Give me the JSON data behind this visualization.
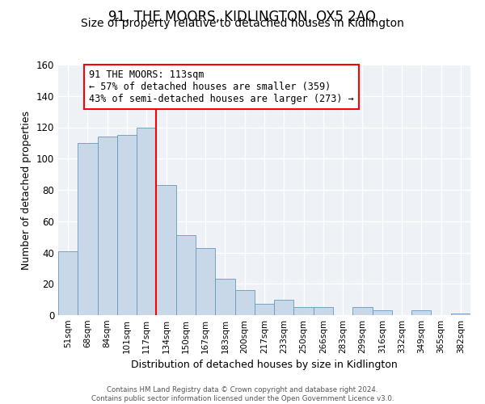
{
  "title": "91, THE MOORS, KIDLINGTON, OX5 2AQ",
  "subtitle": "Size of property relative to detached houses in Kidlington",
  "xlabel": "Distribution of detached houses by size in Kidlington",
  "ylabel": "Number of detached properties",
  "categories": [
    "51sqm",
    "68sqm",
    "84sqm",
    "101sqm",
    "117sqm",
    "134sqm",
    "150sqm",
    "167sqm",
    "183sqm",
    "200sqm",
    "217sqm",
    "233sqm",
    "250sqm",
    "266sqm",
    "283sqm",
    "299sqm",
    "316sqm",
    "332sqm",
    "349sqm",
    "365sqm",
    "382sqm"
  ],
  "values": [
    41,
    110,
    114,
    115,
    120,
    83,
    51,
    43,
    23,
    16,
    7,
    10,
    5,
    5,
    0,
    5,
    3,
    0,
    3,
    0,
    1
  ],
  "bar_color": "#c8d8e8",
  "bar_edge_color": "#6699bb",
  "vline_color": "red",
  "annotation_text": "91 THE MOORS: 113sqm\n← 57% of detached houses are smaller (359)\n43% of semi-detached houses are larger (273) →",
  "annotation_box_color": "white",
  "annotation_box_edge_color": "red",
  "ylim": [
    0,
    160
  ],
  "yticks": [
    0,
    20,
    40,
    60,
    80,
    100,
    120,
    140,
    160
  ],
  "footer": "Contains HM Land Registry data © Crown copyright and database right 2024.\nContains public sector information licensed under the Open Government Licence v3.0.",
  "background_color": "#eef2f7",
  "title_fontsize": 12,
  "subtitle_fontsize": 10
}
